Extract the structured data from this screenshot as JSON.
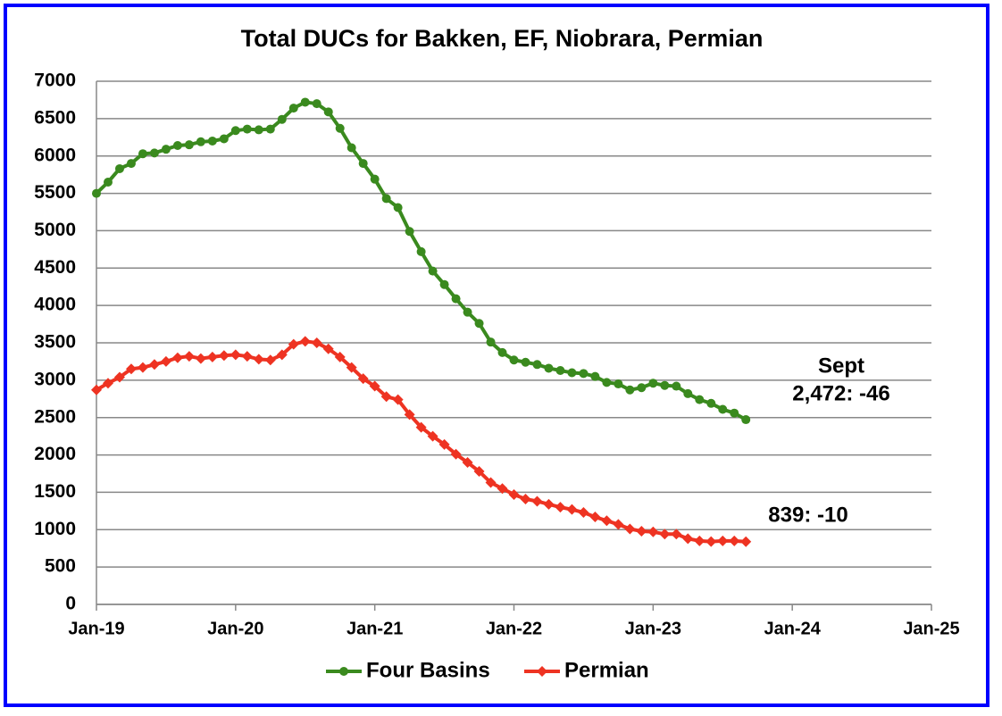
{
  "chart_data": {
    "type": "line",
    "title": "Total DUCs for Bakken, EF, Niobrara, Permian",
    "x": [
      "2019-01",
      "2019-02",
      "2019-03",
      "2019-04",
      "2019-05",
      "2019-06",
      "2019-07",
      "2019-08",
      "2019-09",
      "2019-10",
      "2019-11",
      "2019-12",
      "2020-01",
      "2020-02",
      "2020-03",
      "2020-04",
      "2020-05",
      "2020-06",
      "2020-07",
      "2020-08",
      "2020-09",
      "2020-10",
      "2020-11",
      "2020-12",
      "2021-01",
      "2021-02",
      "2021-03",
      "2021-04",
      "2021-05",
      "2021-06",
      "2021-07",
      "2021-08",
      "2021-09",
      "2021-10",
      "2021-11",
      "2021-12",
      "2022-01",
      "2022-02",
      "2022-03",
      "2022-04",
      "2022-05",
      "2022-06",
      "2022-07",
      "2022-08",
      "2022-09",
      "2022-10",
      "2022-11",
      "2022-12",
      "2023-01",
      "2023-02",
      "2023-03",
      "2023-04",
      "2023-05",
      "2023-06",
      "2023-07",
      "2023-08",
      "2023-09"
    ],
    "series": [
      {
        "name": "Four Basins",
        "color": "#3a8a1e",
        "marker": "circle",
        "values": [
          5500,
          5650,
          5830,
          5900,
          6030,
          6040,
          6090,
          6140,
          6150,
          6190,
          6200,
          6230,
          6340,
          6360,
          6350,
          6360,
          6490,
          6640,
          6720,
          6700,
          6590,
          6370,
          6110,
          5900,
          5690,
          5430,
          5310,
          4990,
          4720,
          4460,
          4280,
          4090,
          3910,
          3760,
          3510,
          3370,
          3270,
          3240,
          3210,
          3160,
          3130,
          3100,
          3090,
          3050,
          2970,
          2950,
          2870,
          2900,
          2960,
          2930,
          2920,
          2820,
          2740,
          2690,
          2610,
          2560,
          2472
        ]
      },
      {
        "name": "Permian",
        "color": "#ee3322",
        "marker": "diamond",
        "values": [
          2870,
          2960,
          3040,
          3150,
          3170,
          3210,
          3250,
          3300,
          3320,
          3290,
          3310,
          3330,
          3340,
          3320,
          3280,
          3270,
          3340,
          3480,
          3520,
          3500,
          3420,
          3310,
          3170,
          3020,
          2920,
          2780,
          2740,
          2540,
          2370,
          2250,
          2140,
          2010,
          1900,
          1780,
          1630,
          1550,
          1470,
          1410,
          1380,
          1340,
          1300,
          1270,
          1230,
          1170,
          1120,
          1070,
          1010,
          980,
          970,
          940,
          940,
          880,
          850,
          840,
          850,
          849,
          839
        ]
      }
    ],
    "xlim": [
      "2019-01",
      "2025-01"
    ],
    "xticks": [
      {
        "value": "2019-01",
        "label": "Jan-19"
      },
      {
        "value": "2020-01",
        "label": "Jan-20"
      },
      {
        "value": "2021-01",
        "label": "Jan-21"
      },
      {
        "value": "2022-01",
        "label": "Jan-22"
      },
      {
        "value": "2023-01",
        "label": "Jan-23"
      },
      {
        "value": "2024-01",
        "label": "Jan-24"
      },
      {
        "value": "2025-01",
        "label": "Jan-25"
      }
    ],
    "ylim": [
      0,
      7000
    ],
    "yticks": [
      0,
      500,
      1000,
      1500,
      2000,
      2500,
      3000,
      3500,
      4000,
      4500,
      5000,
      5500,
      6000,
      6500,
      7000
    ],
    "grid": true,
    "legend": "bottom",
    "annotations": [
      "Sept",
      "2,472: -46",
      "839: -10"
    ]
  }
}
